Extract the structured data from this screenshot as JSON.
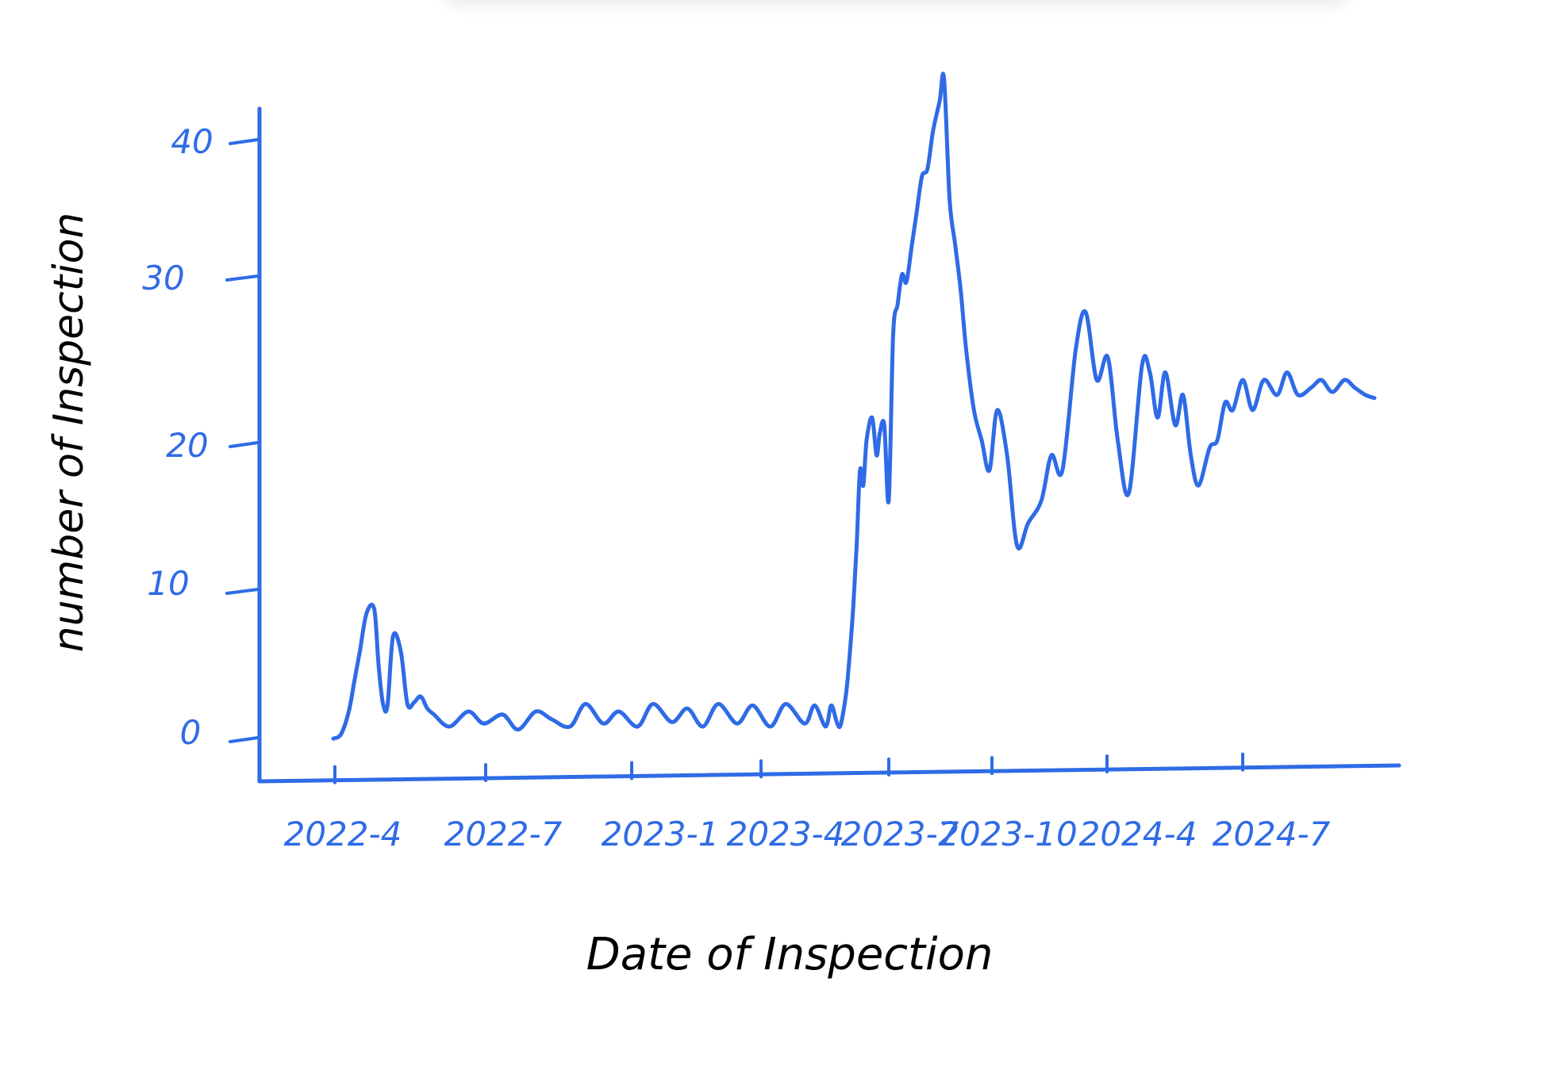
{
  "chart_data": {
    "type": "line",
    "xlabel": "Date of Inspection",
    "ylabel": "number of Inspection",
    "x_ticks": [
      "2022-4",
      "2022-7",
      "2023-1",
      "2023-4",
      "2023-7",
      "2023-10",
      "2024-4",
      "2024-7"
    ],
    "y_ticks": [
      0,
      10,
      20,
      30,
      40
    ],
    "ylim": [
      0,
      45
    ],
    "grid": false,
    "legend": "none",
    "color": "#2f6be6",
    "series": [
      {
        "x": [
          "2022-04-01",
          "2022-04-08",
          "2022-04-15",
          "2022-04-20",
          "2022-04-25",
          "2022-05-01",
          "2022-05-08",
          "2022-05-12",
          "2022-05-16",
          "2022-05-20",
          "2022-05-25",
          "2022-06-01",
          "2022-06-07",
          "2022-06-13",
          "2022-06-19",
          "2022-06-25",
          "2022-07-01",
          "2022-07-15",
          "2022-08-01",
          "2022-08-15",
          "2022-09-01",
          "2022-09-15",
          "2022-10-01",
          "2022-10-15",
          "2022-11-01",
          "2022-11-15",
          "2022-12-01",
          "2022-12-15",
          "2023-01-01",
          "2023-01-15",
          "2023-02-01",
          "2023-02-15",
          "2023-03-01",
          "2023-03-15",
          "2023-04-01",
          "2023-04-15",
          "2023-05-01",
          "2023-05-15",
          "2023-06-01",
          "2023-06-10",
          "2023-06-20",
          "2023-06-25",
          "2023-06-30",
          "2023-07-03",
          "2023-07-06",
          "2023-07-09",
          "2023-07-12",
          "2023-07-15",
          "2023-07-18",
          "2023-07-21",
          "2023-07-24",
          "2023-07-27",
          "2023-08-01",
          "2023-08-05",
          "2023-08-08",
          "2023-08-12",
          "2023-08-16",
          "2023-08-20",
          "2023-08-24",
          "2023-08-28",
          "2023-09-01",
          "2023-09-06",
          "2023-09-10",
          "2023-09-15",
          "2023-09-20",
          "2023-09-25",
          "2023-10-01",
          "2023-10-05",
          "2023-10-10",
          "2023-10-15",
          "2023-10-20",
          "2023-10-25",
          "2023-11-01",
          "2023-11-08",
          "2023-11-15",
          "2023-11-22",
          "2023-12-01",
          "2023-12-10",
          "2023-12-20",
          "2024-01-01",
          "2024-01-10",
          "2024-01-20",
          "2024-02-01",
          "2024-02-10",
          "2024-02-20",
          "2024-03-01",
          "2024-03-10",
          "2024-03-20",
          "2024-04-01",
          "2024-04-08",
          "2024-04-15",
          "2024-04-22",
          "2024-05-01",
          "2024-05-08",
          "2024-05-15",
          "2024-05-22",
          "2024-06-01",
          "2024-06-08",
          "2024-06-15",
          "2024-06-22",
          "2024-07-01",
          "2024-07-10",
          "2024-07-20",
          "2024-08-01",
          "2024-08-10",
          "2024-08-20",
          "2024-09-01",
          "2024-09-10",
          "2024-09-20",
          "2024-10-01",
          "2024-10-10",
          "2024-10-20",
          "2024-10-28"
        ],
        "y": [
          0.2,
          0.5,
          2.0,
          4.0,
          6.0,
          8.5,
          8.8,
          5.0,
          2.5,
          2.4,
          7.0,
          6.0,
          2.5,
          2.6,
          3.0,
          2.2,
          1.8,
          1.0,
          2.0,
          1.2,
          1.8,
          0.8,
          2.0,
          1.5,
          1.0,
          2.5,
          1.2,
          2.0,
          1.0,
          2.5,
          1.3,
          2.2,
          1.0,
          2.5,
          1.2,
          2.4,
          1.0,
          2.5,
          1.2,
          2.4,
          1.0,
          2.4,
          1.3,
          1.0,
          2.0,
          3.5,
          6.0,
          9.0,
          13.0,
          18.0,
          17.0,
          20.0,
          21.5,
          19.0,
          20.5,
          21.0,
          16.0,
          27.0,
          29.0,
          31.0,
          30.5,
          33.0,
          35.0,
          37.5,
          38.0,
          40.5,
          42.5,
          44.0,
          36.0,
          33.0,
          30.0,
          26.0,
          22.0,
          20.0,
          18.0,
          22.0,
          19.0,
          13.0,
          14.5,
          16.0,
          19.0,
          18.0,
          26.0,
          28.5,
          24.0,
          25.5,
          20.0,
          16.5,
          25.0,
          24.5,
          21.5,
          24.5,
          21.0,
          23.0,
          19.0,
          17.0,
          19.5,
          20.0,
          22.5,
          22.0,
          24.0,
          22.0,
          24.0,
          23.0,
          24.5,
          23.0,
          23.5,
          24.0,
          23.2,
          24.0,
          23.5,
          23.0,
          22.8
        ]
      }
    ]
  }
}
